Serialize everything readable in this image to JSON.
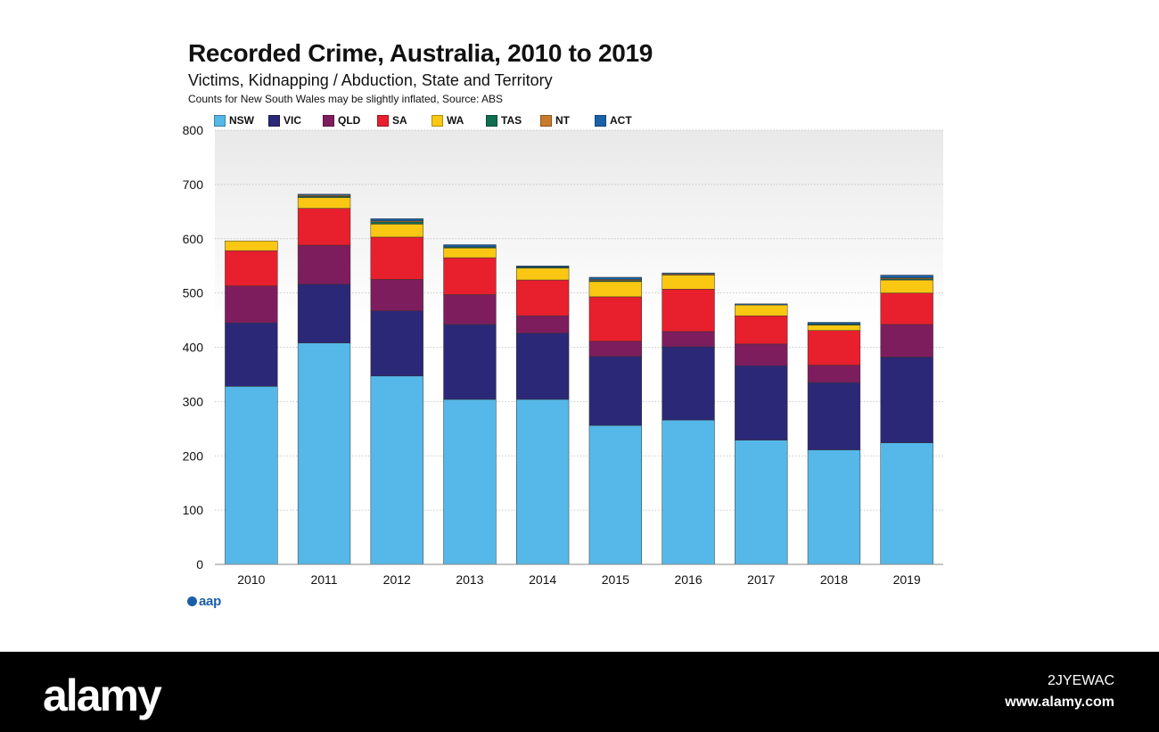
{
  "chart_data": {
    "type": "bar",
    "stacked": true,
    "title": "Recorded Crime, Australia, 2010 to 2019",
    "subtitle": "Victims, Kidnapping / Abduction, State and Territory",
    "note": "Counts for New South Wales may be slightly inflated, Source: ABS",
    "categories": [
      "2010",
      "2011",
      "2012",
      "2013",
      "2014",
      "2015",
      "2016",
      "2017",
      "2018",
      "2019"
    ],
    "ylim": [
      0,
      800
    ],
    "yticks": [
      0,
      100,
      200,
      300,
      400,
      500,
      600,
      700,
      800
    ],
    "grid": true,
    "legend_position": "top",
    "series": [
      {
        "name": "NSW",
        "color": "#55b8e8",
        "values": [
          328,
          408,
          347,
          304,
          304,
          256,
          266,
          229,
          211,
          224
        ]
      },
      {
        "name": "VIC",
        "color": "#2b2877",
        "values": [
          117,
          108,
          120,
          138,
          122,
          127,
          135,
          137,
          124,
          158
        ]
      },
      {
        "name": "QLD",
        "color": "#7d1d5e",
        "values": [
          68,
          72,
          58,
          55,
          32,
          28,
          28,
          40,
          32,
          60
        ]
      },
      {
        "name": "SA",
        "color": "#e81f2d",
        "values": [
          65,
          68,
          78,
          68,
          66,
          82,
          78,
          52,
          64,
          58
        ]
      },
      {
        "name": "WA",
        "color": "#fac712",
        "values": [
          18,
          20,
          24,
          18,
          22,
          28,
          26,
          20,
          10,
          24
        ]
      },
      {
        "name": "TAS",
        "color": "#0e6e51",
        "values": [
          0,
          2,
          4,
          2,
          2,
          2,
          0,
          0,
          2,
          2
        ]
      },
      {
        "name": "NT",
        "color": "#c97b2b",
        "values": [
          0,
          2,
          2,
          0,
          0,
          2,
          2,
          0,
          0,
          2
        ]
      },
      {
        "name": "ACT",
        "color": "#1a62a8",
        "values": [
          0,
          2,
          4,
          4,
          2,
          4,
          2,
          2,
          3,
          5
        ]
      }
    ]
  },
  "branding": {
    "publisher_logo": "aap",
    "watermark_logo": "alamy",
    "image_id": "2JYEWAC",
    "site_url": "www.alamy.com"
  }
}
